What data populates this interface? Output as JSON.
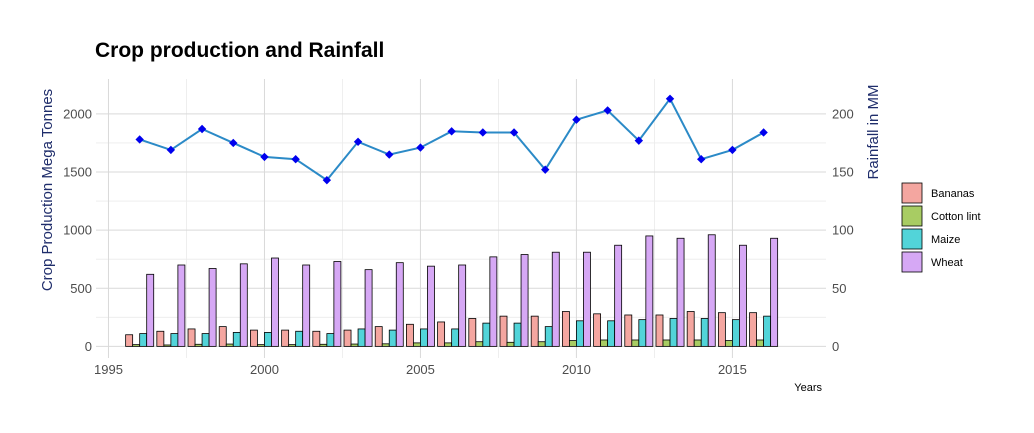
{
  "chart_data": {
    "type": "bar",
    "title": "Crop production and Rainfall",
    "xlabel": "Years",
    "ylabel": "Crop Production Mega Tonnes",
    "y2label": "Rainfall in MM",
    "xlim": [
      1994.6,
      2018.0
    ],
    "ylim": [
      -100,
      2300
    ],
    "y2lim": [
      -10,
      230
    ],
    "x_ticks": [
      "1995",
      "2000",
      "2005",
      "2010",
      "2015"
    ],
    "y_ticks": [
      "0",
      "500",
      "1000",
      "1500",
      "2000"
    ],
    "y2_ticks": [
      "0",
      "50",
      "100",
      "150",
      "200"
    ],
    "grid": true,
    "legend_position": "right",
    "x": [
      1996,
      1997,
      1998,
      1999,
      2000,
      2001,
      2002,
      2003,
      2004,
      2005,
      2006,
      2007,
      2008,
      2009,
      2010,
      2011,
      2012,
      2013,
      2014,
      2015,
      2016
    ],
    "series": [
      {
        "name": "Bananas",
        "color": "#f4a6a0",
        "values": [
          100,
          130,
          150,
          170,
          140,
          140,
          130,
          140,
          170,
          190,
          210,
          240,
          260,
          260,
          300,
          280,
          270,
          270,
          300,
          290,
          290
        ]
      },
      {
        "name": "Cotton lint",
        "color": "#a8cc63",
        "values": [
          15,
          12,
          18,
          20,
          15,
          15,
          18,
          20,
          22,
          30,
          30,
          40,
          35,
          40,
          50,
          55,
          55,
          55,
          55,
          50,
          55
        ]
      },
      {
        "name": "Maize",
        "color": "#52d4d9",
        "values": [
          110,
          110,
          110,
          120,
          120,
          130,
          110,
          150,
          140,
          150,
          150,
          200,
          200,
          170,
          220,
          220,
          230,
          240,
          240,
          230,
          260
        ]
      },
      {
        "name": "Wheat",
        "color": "#d6a8f5",
        "values": [
          620,
          700,
          670,
          710,
          760,
          700,
          730,
          660,
          720,
          690,
          700,
          770,
          790,
          810,
          810,
          870,
          950,
          930,
          960,
          870,
          930
        ]
      }
    ],
    "line_series": {
      "name": "Rainfall in MM",
      "color": "#2b8ac7",
      "marker_color": "#0000ee",
      "values": [
        178,
        169,
        187,
        175,
        163,
        161,
        143,
        176,
        165,
        171,
        185,
        184,
        184,
        152,
        195,
        203,
        177,
        213,
        161,
        169,
        184
      ]
    }
  }
}
